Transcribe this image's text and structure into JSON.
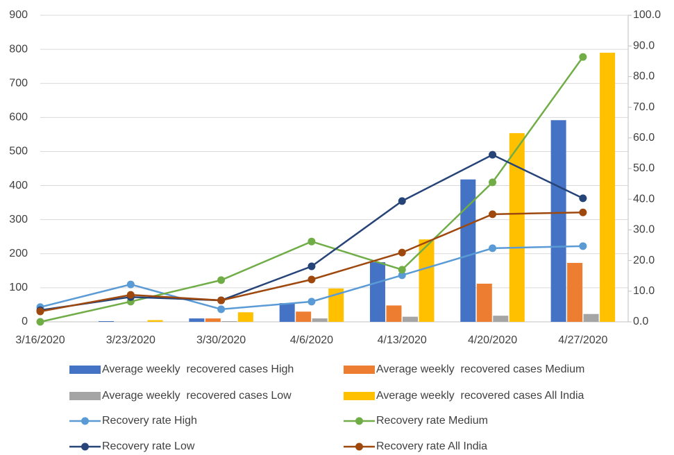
{
  "chart_data": {
    "type": "combo",
    "categories": [
      "3/16/2020",
      "3/23/2020",
      "3/30/2020",
      "4/6/2020",
      "4/13/2020",
      "4/20/2020",
      "4/27/2020"
    ],
    "ylim": [
      0,
      900
    ],
    "yticks": [
      0,
      100,
      200,
      300,
      400,
      500,
      600,
      700,
      800,
      900
    ],
    "y2lim": [
      0,
      100
    ],
    "y2ticks": [
      {
        "value": 0,
        "label": "0.0"
      },
      {
        "value": 10,
        "label": "10.0"
      },
      {
        "value": 20,
        "label": "20.0"
      },
      {
        "value": 30,
        "label": "30.0"
      },
      {
        "value": 40,
        "label": "40.0"
      },
      {
        "value": 50,
        "label": "50.0"
      },
      {
        "value": 60,
        "label": "60.0"
      },
      {
        "value": 70,
        "label": "70.0"
      },
      {
        "value": 80,
        "label": "80.0"
      },
      {
        "value": 90,
        "label": "90.0"
      },
      {
        "value": 100,
        "label": "100.0"
      }
    ],
    "grid": true,
    "legend": "bottom",
    "series": [
      {
        "name": "Average weekly  recovered cases High",
        "type": "bar",
        "color": "#4472c4",
        "values": [
          0,
          2,
          10,
          55,
          175,
          418,
          592
        ]
      },
      {
        "name": "Average weekly  recovered cases Medium",
        "type": "bar",
        "color": "#ed7d31",
        "values": [
          0,
          0,
          10,
          30,
          48,
          112,
          173
        ]
      },
      {
        "name": "Average weekly  recovered cases Low",
        "type": "bar",
        "color": "#a5a5a5",
        "values": [
          0,
          0,
          2,
          10,
          15,
          18,
          23
        ]
      },
      {
        "name": "Average weekly  recovered cases All India",
        "type": "bar",
        "color": "#ffc000",
        "values": [
          0,
          5,
          28,
          98,
          242,
          554,
          790
        ]
      },
      {
        "name": "Recovery rate High",
        "type": "line",
        "axis": "y2",
        "color": "#5b9bd5",
        "values": [
          4.8,
          12.2,
          4.1,
          6.6,
          15.2,
          24.0,
          24.7
        ]
      },
      {
        "name": "Recovery rate Medium",
        "type": "line",
        "axis": "y2",
        "color": "#70ad47",
        "values": [
          0,
          6.6,
          13.6,
          26.2,
          17.0,
          45.5,
          86.4
        ]
      },
      {
        "name": "Recovery rate Low",
        "type": "line",
        "axis": "y2",
        "color": "#264478",
        "values": [
          3.8,
          8.1,
          7.0,
          18.1,
          39.4,
          54.5,
          40.3
        ]
      },
      {
        "name": "Recovery rate All India",
        "type": "line",
        "axis": "y2",
        "color": "#9e480e",
        "values": [
          3.4,
          8.8,
          7.0,
          13.8,
          22.6,
          35.1,
          35.7
        ]
      }
    ]
  }
}
